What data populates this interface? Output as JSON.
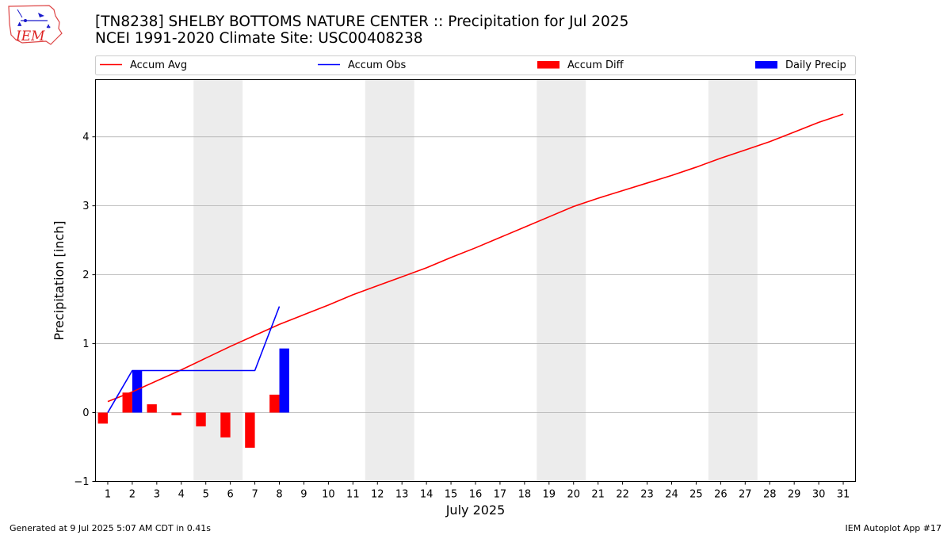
{
  "header": {
    "title_line1": "[TN8238] SHELBY BOTTOMS NATURE CENTER :: Precipitation for Jul 2025",
    "title_line2": "NCEI 1991-2020 Climate Site: USC00408238"
  },
  "logo": {
    "text": "IEM"
  },
  "footer": {
    "left": "Generated at 9 Jul 2025 5:07 AM CDT in 0.41s",
    "right": "IEM Autoplot App #17"
  },
  "colors": {
    "accum_avg": "#ff0000",
    "accum_obs": "#0000ff",
    "accum_diff": "#ff0000",
    "daily_precip": "#0000ff",
    "weekend_band": "#ececec",
    "grid": "#b0b0b0"
  },
  "chart_data": {
    "type": "bar",
    "xlabel": "July 2025",
    "ylabel": "Precipitation [inch]",
    "xlim": [
      0.5,
      31.5
    ],
    "ylim": [
      -1,
      4.83
    ],
    "x_ticks": [
      1,
      2,
      3,
      4,
      5,
      6,
      7,
      8,
      9,
      10,
      11,
      12,
      13,
      14,
      15,
      16,
      17,
      18,
      19,
      20,
      21,
      22,
      23,
      24,
      25,
      26,
      27,
      28,
      29,
      30,
      31
    ],
    "y_ticks": [
      -1,
      0,
      1,
      2,
      3,
      4
    ],
    "grid": "horizontal",
    "legend_position": "top",
    "shaded_weekends": [
      [
        5,
        6
      ],
      [
        12,
        13
      ],
      [
        19,
        20
      ],
      [
        26,
        27
      ]
    ],
    "series": [
      {
        "name": "Accum Avg",
        "type": "line",
        "x": [
          1,
          2,
          3,
          4,
          5,
          6,
          7,
          8,
          9,
          10,
          11,
          12,
          13,
          14,
          15,
          16,
          17,
          18,
          19,
          20,
          21,
          22,
          23,
          24,
          25,
          26,
          27,
          28,
          29,
          30,
          31
        ],
        "values": [
          0.16,
          0.3,
          0.46,
          0.62,
          0.79,
          0.96,
          1.12,
          1.28,
          1.42,
          1.56,
          1.71,
          1.84,
          1.97,
          2.1,
          2.25,
          2.39,
          2.54,
          2.69,
          2.84,
          2.99,
          3.11,
          3.22,
          3.33,
          3.44,
          3.56,
          3.69,
          3.81,
          3.93,
          4.07,
          4.21,
          4.33
        ]
      },
      {
        "name": "Accum Obs",
        "type": "line",
        "x": [
          1,
          2,
          3,
          4,
          5,
          6,
          7,
          8
        ],
        "values": [
          0.0,
          0.61,
          0.61,
          0.61,
          0.61,
          0.61,
          0.61,
          1.54
        ]
      },
      {
        "name": "Accum Diff",
        "type": "bar",
        "x": [
          1,
          2,
          3,
          4,
          5,
          6,
          7,
          8
        ],
        "values": [
          -0.16,
          0.29,
          0.12,
          -0.04,
          -0.2,
          -0.36,
          -0.51,
          0.26
        ]
      },
      {
        "name": "Daily Precip",
        "type": "bar",
        "x": [
          1,
          2,
          3,
          4,
          5,
          6,
          7,
          8
        ],
        "values": [
          0,
          0.61,
          0,
          0,
          0,
          0,
          0,
          0.93
        ]
      }
    ]
  }
}
